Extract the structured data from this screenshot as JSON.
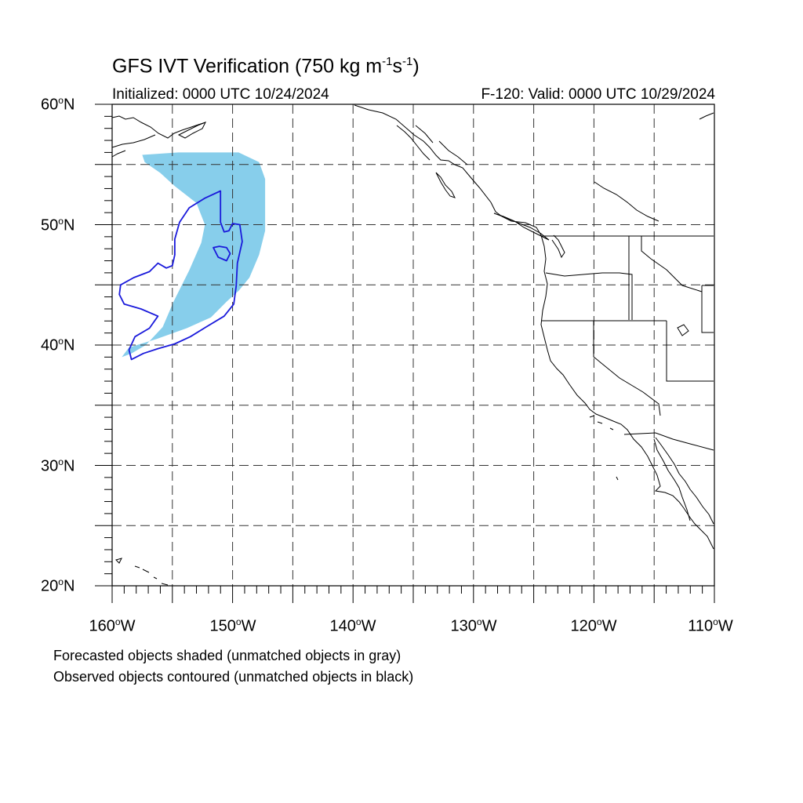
{
  "title": {
    "main": "GFS IVT Verification (750 kg m",
    "exp1": "-1",
    "mid": "s",
    "exp2": "-1",
    "close": ")"
  },
  "subtitle": {
    "left": "Initialized: 0000 UTC 10/24/2024",
    "right": "F-120: Valid: 0000 UTC 10/29/2024"
  },
  "axes": {
    "lon_range": [
      -160,
      -110
    ],
    "lat_range": [
      20,
      60
    ],
    "lat_labels": [
      {
        "deg": "60",
        "suffix": "N"
      },
      {
        "deg": "50",
        "suffix": "N"
      },
      {
        "deg": "40",
        "suffix": "N"
      },
      {
        "deg": "30",
        "suffix": "N"
      },
      {
        "deg": "20",
        "suffix": "N"
      }
    ],
    "lon_labels": [
      {
        "deg": "160",
        "suffix": "W"
      },
      {
        "deg": "150",
        "suffix": "W"
      },
      {
        "deg": "140",
        "suffix": "W"
      },
      {
        "deg": "130",
        "suffix": "W"
      },
      {
        "deg": "120",
        "suffix": "W"
      },
      {
        "deg": "110",
        "suffix": "W"
      }
    ],
    "gridlines": "dashed every 5 degrees"
  },
  "colors": {
    "forecast_fill": "#87ceeb",
    "observed_contour": "#1a1adb",
    "grid": "#333333",
    "coastline": "#000000"
  },
  "objects": {
    "forecast_shaded": {
      "type": "matched",
      "color_name": "sky blue",
      "outline_lonlat": [
        [
          -157.5,
          55.8
        ],
        [
          -154.5,
          56.0
        ],
        [
          -149.5,
          56.0
        ],
        [
          -147.8,
          55.2
        ],
        [
          -147.3,
          53.8
        ],
        [
          -147.3,
          51.5
        ],
        [
          -147.3,
          49.5
        ],
        [
          -147.8,
          47.5
        ],
        [
          -148.6,
          45.6
        ],
        [
          -149.5,
          44.5
        ],
        [
          -150.5,
          43.6
        ],
        [
          -151.8,
          42.3
        ],
        [
          -153.8,
          41.4
        ],
        [
          -156.3,
          40.5
        ],
        [
          -158.6,
          39.8
        ],
        [
          -159.2,
          39.0
        ],
        [
          -158.4,
          39.3
        ],
        [
          -157.2,
          40.0
        ],
        [
          -155.8,
          41.5
        ],
        [
          -154.9,
          43.6
        ],
        [
          -153.6,
          46.2
        ],
        [
          -152.6,
          48.5
        ],
        [
          -152.3,
          50.0
        ],
        [
          -153.0,
          51.8
        ],
        [
          -154.8,
          53.2
        ],
        [
          -156.0,
          54.3
        ],
        [
          -157.3,
          55.2
        ]
      ]
    },
    "observed_contours": [
      {
        "type": "matched",
        "outline_lonlat": [
          [
            -151.0,
            52.8
          ],
          [
            -152.3,
            52.2
          ],
          [
            -153.6,
            51.4
          ],
          [
            -154.4,
            50.2
          ],
          [
            -154.8,
            48.8
          ],
          [
            -154.8,
            47.5
          ],
          [
            -155.0,
            46.6
          ],
          [
            -155.5,
            46.4
          ],
          [
            -156.2,
            46.8
          ],
          [
            -156.9,
            46.1
          ],
          [
            -158.2,
            45.6
          ],
          [
            -159.3,
            45.0
          ],
          [
            -159.4,
            44.2
          ],
          [
            -159.0,
            43.4
          ],
          [
            -157.6,
            43.0
          ],
          [
            -156.2,
            42.4
          ],
          [
            -156.9,
            41.4
          ],
          [
            -158.1,
            40.7
          ],
          [
            -158.6,
            39.6
          ],
          [
            -158.4,
            38.8
          ],
          [
            -157.4,
            39.3
          ],
          [
            -156.2,
            39.7
          ],
          [
            -154.8,
            40.1
          ],
          [
            -153.5,
            40.7
          ],
          [
            -152.2,
            41.5
          ],
          [
            -150.7,
            42.4
          ],
          [
            -149.9,
            43.4
          ],
          [
            -149.7,
            44.9
          ],
          [
            -149.6,
            46.8
          ],
          [
            -149.2,
            48.6
          ],
          [
            -149.4,
            50.0
          ],
          [
            -150.0,
            50.1
          ],
          [
            -150.3,
            49.5
          ],
          [
            -150.7,
            49.4
          ],
          [
            -151.0,
            50.2
          ],
          [
            -151.0,
            51.5
          ]
        ]
      },
      {
        "type": "matched",
        "outline_lonlat": [
          [
            -151.6,
            48.1
          ],
          [
            -151.2,
            47.3
          ],
          [
            -150.5,
            47.0
          ],
          [
            -150.2,
            47.6
          ],
          [
            -150.5,
            48.1
          ],
          [
            -151.1,
            48.2
          ]
        ]
      }
    ]
  },
  "notes": [
    "Forecasted objects shaded (unmatched objects in gray)",
    "Observed objects contoured (unmatched objects in black)"
  ]
}
